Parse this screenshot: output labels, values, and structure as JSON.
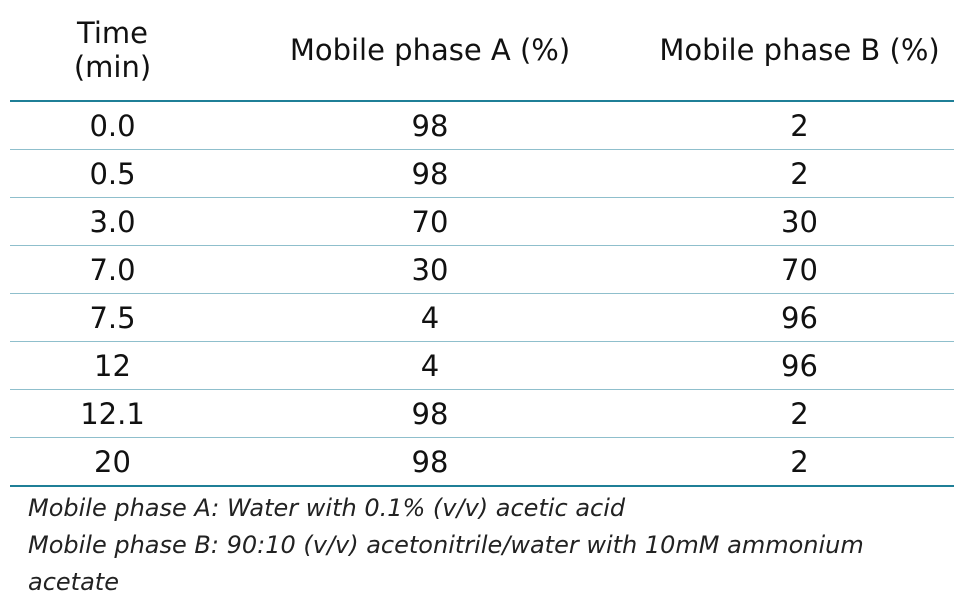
{
  "table": {
    "headers": [
      "Time (min)",
      "Mobile phase A (%)",
      "Mobile phase B (%)"
    ],
    "header_lines": {
      "time_line1": "Time",
      "time_line2": "(min)",
      "phase_a": "Mobile phase A (%)",
      "phase_b": "Mobile phase B (%)"
    },
    "rows": [
      [
        "0.0",
        "98",
        "2"
      ],
      [
        "0.5",
        "98",
        "2"
      ],
      [
        "3.0",
        "70",
        "30"
      ],
      [
        "7.0",
        "30",
        "70"
      ],
      [
        "7.5",
        "4",
        "96"
      ],
      [
        "12",
        "4",
        "96"
      ],
      [
        "12.1",
        "98",
        "2"
      ],
      [
        "20",
        "98",
        "2"
      ]
    ]
  },
  "notes": {
    "line1": "Mobile phase A: Water with 0.1% (v/v) acetic acid",
    "line2": "Mobile phase B: 90:10 (v/v) acetonitrile/water with 10mM ammonium",
    "line3": "acetate"
  },
  "colors": {
    "rule_strong": "#1f7f97",
    "rule_light": "#8fbfcc",
    "text": "#111111"
  }
}
